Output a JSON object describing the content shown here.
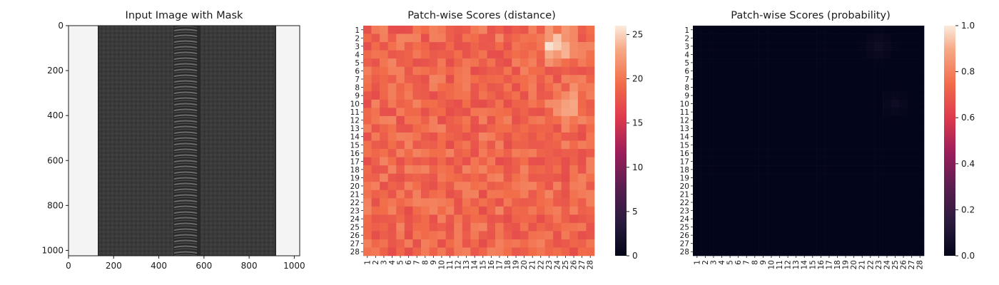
{
  "chart_data": [
    {
      "type": "image",
      "title": "Input Image with Mask",
      "xlim": [
        0,
        1024
      ],
      "ylim": [
        1024,
        0
      ],
      "xticks": [
        0,
        200,
        400,
        600,
        800,
        1000
      ],
      "yticks": [
        0,
        200,
        400,
        600,
        800,
        1000
      ],
      "image_content": "zipper-on-dark-fabric"
    },
    {
      "type": "heatmap",
      "title": "Patch-wise Scores (distance)",
      "rows": 28,
      "cols": 28,
      "x_tick_labels": [
        "1",
        "2",
        "3",
        "4",
        "5",
        "6",
        "7",
        "8",
        "9",
        "10",
        "11",
        "12",
        "13",
        "14",
        "15",
        "16",
        "17",
        "18",
        "19",
        "20",
        "21",
        "22",
        "23",
        "24",
        "25",
        "26",
        "27",
        "28"
      ],
      "y_tick_labels": [
        "1",
        "2",
        "3",
        "4",
        "5",
        "6",
        "7",
        "8",
        "9",
        "10",
        "11",
        "12",
        "13",
        "14",
        "15",
        "16",
        "17",
        "18",
        "19",
        "20",
        "21",
        "22",
        "23",
        "24",
        "25",
        "26",
        "27",
        "28"
      ],
      "colorbar": {
        "vmin": 0,
        "vmax": 26,
        "ticks": [
          0,
          5,
          10,
          15,
          20,
          25
        ]
      },
      "colormap": "rocket",
      "base_value": 19,
      "hotspots": [
        {
          "row": 3,
          "col": 24,
          "value": 26
        },
        {
          "row": 10,
          "col": 25,
          "value": 23
        }
      ]
    },
    {
      "type": "heatmap",
      "title": "Patch-wise Scores (probability)",
      "rows": 28,
      "cols": 28,
      "x_tick_labels": [
        "1",
        "2",
        "3",
        "4",
        "5",
        "6",
        "7",
        "8",
        "9",
        "10",
        "11",
        "12",
        "13",
        "14",
        "15",
        "16",
        "17",
        "18",
        "19",
        "20",
        "21",
        "22",
        "23",
        "24",
        "25",
        "26",
        "27",
        "28"
      ],
      "y_tick_labels": [
        "1",
        "2",
        "3",
        "4",
        "5",
        "6",
        "7",
        "8",
        "9",
        "10",
        "11",
        "12",
        "13",
        "14",
        "15",
        "16",
        "17",
        "18",
        "19",
        "20",
        "21",
        "22",
        "23",
        "24",
        "25",
        "26",
        "27",
        "28"
      ],
      "colorbar": {
        "vmin": 0,
        "vmax": 1,
        "ticks": [
          "0.0",
          "0.2",
          "0.4",
          "0.6",
          "0.8",
          "1.0"
        ]
      },
      "colormap": "rocket",
      "base_value": 0,
      "hotspots": [
        {
          "row": 3,
          "col": 23,
          "value": 0.05
        },
        {
          "row": 10,
          "col": 25,
          "value": 0.04
        }
      ]
    }
  ]
}
